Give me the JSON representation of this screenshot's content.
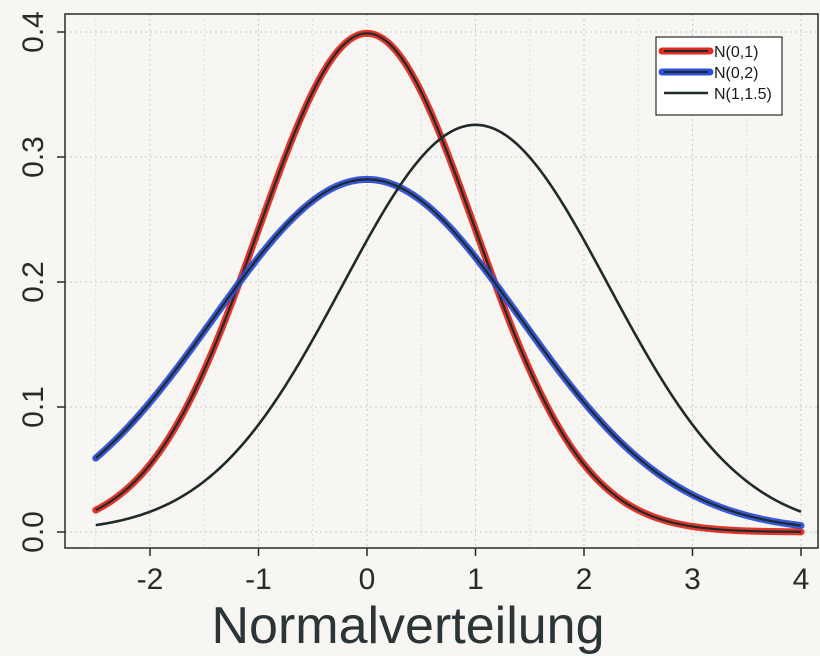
{
  "chart_data": {
    "type": "line",
    "title": "",
    "xlabel": "Normalverteilung",
    "ylabel": "",
    "xlim": [
      -2.5,
      4.0
    ],
    "ylim": [
      0.0,
      0.4
    ],
    "xticks": [
      "-2",
      "-1",
      "0",
      "1",
      "2",
      "3",
      "4"
    ],
    "yticks": [
      "0.0",
      "0.1",
      "0.2",
      "0.3",
      "0.4"
    ],
    "grid": true,
    "legend": {
      "placement": "top-right"
    },
    "series": [
      {
        "name": "N(0,1)",
        "mean": 0,
        "variance": 1,
        "color": "#e02a1f",
        "style": "thick-highlighted"
      },
      {
        "name": "N(0,2)",
        "mean": 0,
        "variance": 2,
        "color": "#2c4fd6",
        "style": "thick-highlighted"
      },
      {
        "name": "N(1,1.5)",
        "mean": 1,
        "variance": 1.5,
        "color": "#1f2b2b",
        "style": "thin"
      }
    ]
  }
}
